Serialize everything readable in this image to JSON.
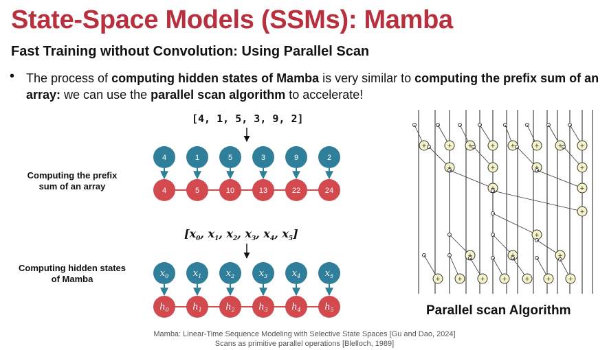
{
  "slide": {
    "title": "State-Space Models (SSMs): Mamba",
    "subtitle": "Fast Training without Convolution: Using Parallel Scan",
    "bullet_symbol": "•",
    "bullet_parts": [
      {
        "text": "The process of ",
        "bold": false
      },
      {
        "text": "computing hidden states of Mamba",
        "bold": true
      },
      {
        "text": " is very similar to ",
        "bold": false
      },
      {
        "text": "computing the prefix sum of an array:",
        "bold": true
      },
      {
        "text": " we can use the ",
        "bold": false
      },
      {
        "text": "parallel scan algorithm",
        "bold": true
      },
      {
        "text": " to accelerate!",
        "bold": false
      }
    ]
  },
  "prefix_sum": {
    "array_label": "[4, 1, 5, 3, 9, 2]",
    "side_label_line1": "Computing the prefix",
    "side_label_line2": "sum of an array",
    "inputs": [
      "4",
      "1",
      "5",
      "3",
      "9",
      "2"
    ],
    "outputs": [
      "4",
      "5",
      "10",
      "13",
      "22",
      "24"
    ]
  },
  "mamba": {
    "array_label_parts": [
      "[",
      "x",
      "0",
      ", ",
      "x",
      "1",
      ", ",
      "x",
      "2",
      ", ",
      "x",
      "3",
      ", ",
      "x",
      "4",
      ", ",
      "x",
      "5",
      "]"
    ],
    "side_label_line1": "Computing hidden states",
    "side_label_line2": "of Mamba",
    "inputs": [
      {
        "base": "x",
        "sub": "0"
      },
      {
        "base": "x",
        "sub": "1"
      },
      {
        "base": "x",
        "sub": "2"
      },
      {
        "base": "x",
        "sub": "3"
      },
      {
        "base": "x",
        "sub": "4"
      },
      {
        "base": "x",
        "sub": "5"
      }
    ],
    "outputs": [
      {
        "base": "h",
        "sub": "0"
      },
      {
        "base": "h",
        "sub": "1"
      },
      {
        "base": "h",
        "sub": "2"
      },
      {
        "base": "h",
        "sub": "3"
      },
      {
        "base": "h",
        "sub": "4"
      },
      {
        "base": "h",
        "sub": "5"
      }
    ]
  },
  "scan_diagram": {
    "caption": "Parallel scan Algorithm",
    "plus_symbol": "+"
  },
  "references": [
    "Mamba: Linear-Time Sequence Modeling with Selective State Spaces [Gu and Dao, 2024]",
    "Scans as primitive parallel operations [Blelloch, 1989]"
  ],
  "colors": {
    "title": "#b8303e",
    "input_node": "#2f7f9a",
    "output_node": "#d24a4e",
    "chain_line": "#d24a4e",
    "plus_node_fill": "#f7f3c8"
  }
}
